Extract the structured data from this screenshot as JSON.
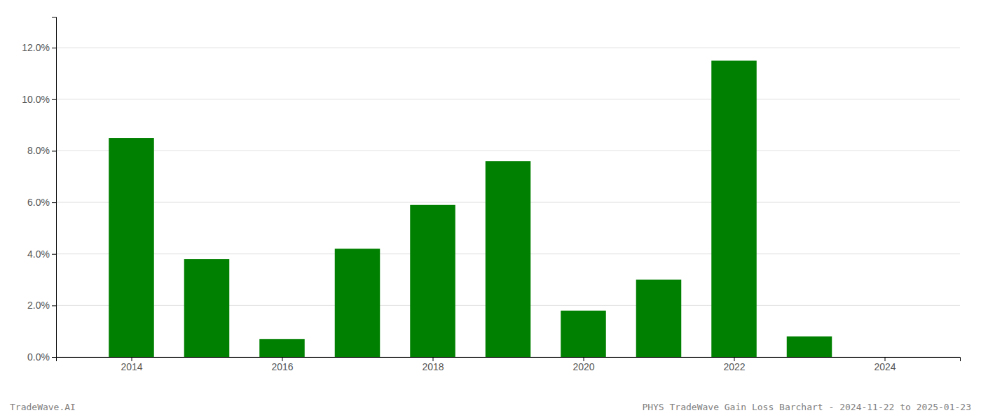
{
  "chart_data": {
    "type": "bar",
    "x": [
      2014,
      2015,
      2016,
      2017,
      2018,
      2019,
      2020,
      2021,
      2022,
      2023,
      2024
    ],
    "values": [
      0.085,
      0.038,
      0.007,
      0.042,
      0.059,
      0.076,
      0.018,
      0.03,
      0.115,
      0.008,
      0.0
    ],
    "color": "#008000",
    "xlim": [
      2013.0,
      2025.0
    ],
    "xticks": [
      2014,
      2016,
      2018,
      2020,
      2022,
      2024
    ],
    "ylim": [
      0,
      0.132
    ],
    "yticks": [
      {
        "value": 0.0,
        "label": "0.0%"
      },
      {
        "value": 0.02,
        "label": "2.0%"
      },
      {
        "value": 0.04,
        "label": "4.0%"
      },
      {
        "value": 0.06,
        "label": "6.0%"
      },
      {
        "value": 0.08,
        "label": "8.0%"
      },
      {
        "value": 0.1,
        "label": "10.0%"
      },
      {
        "value": 0.12,
        "label": "12.0%"
      }
    ],
    "grid": true,
    "annotations": [
      "TradeWave.AI",
      "PHYS TradeWave Gain Loss Barchart - 2024-11-22 to 2025-01-23"
    ]
  }
}
